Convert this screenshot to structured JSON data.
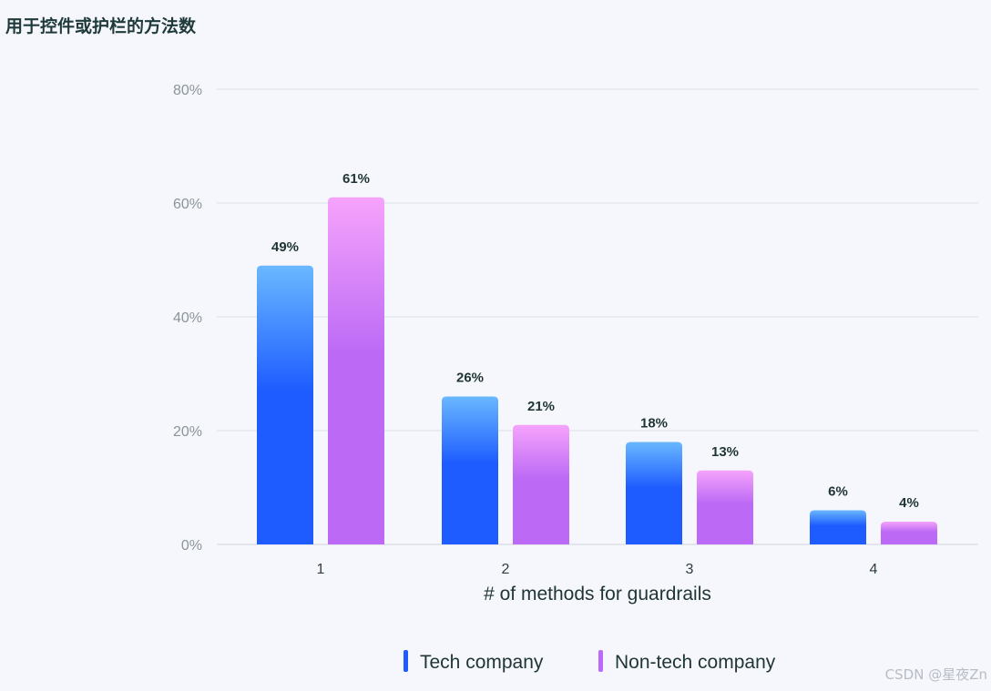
{
  "page": {
    "title": "用于控件或护栏的方法数",
    "watermark": "CSDN @星夜Zn"
  },
  "chart_data": {
    "type": "bar",
    "title": "用于控件或护栏的方法数",
    "xlabel": "# of methods for guardrails",
    "ylabel": "",
    "categories": [
      "1",
      "2",
      "3",
      "4"
    ],
    "ylim": [
      0,
      80
    ],
    "yticks": [
      0,
      20,
      40,
      60,
      80
    ],
    "ytick_labels": [
      "0%",
      "20%",
      "40%",
      "60%",
      "80%"
    ],
    "grid": true,
    "legend_position": "bottom-center",
    "series": [
      {
        "name": "Tech company",
        "values": [
          49,
          26,
          18,
          6
        ],
        "value_labels": [
          "49%",
          "26%",
          "18%",
          "6%"
        ],
        "color": "#1e5cff",
        "color_top": "#69b8ff"
      },
      {
        "name": "Non-tech company",
        "values": [
          61,
          21,
          13,
          4
        ],
        "value_labels": [
          "61%",
          "21%",
          "13%",
          "4%"
        ],
        "color": "#bc6af5",
        "color_top": "#f6a3fc"
      }
    ]
  }
}
